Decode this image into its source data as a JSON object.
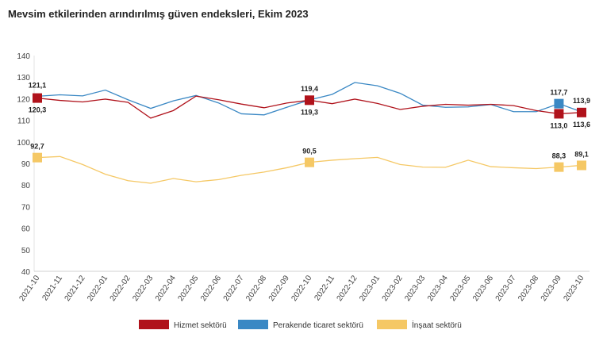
{
  "chart_data": {
    "type": "line",
    "title": "Mevsim etkilerinden arındırılmış güven endeksleri, Ekim 2023",
    "xlabel": "",
    "ylabel": "",
    "ylim": [
      40,
      140
    ],
    "yticks": [
      40,
      50,
      60,
      70,
      80,
      90,
      100,
      110,
      120,
      130,
      140
    ],
    "grid": false,
    "legend_position": "bottom",
    "categories": [
      "2021-10",
      "2021-11",
      "2021-12",
      "2022-01",
      "2022-02",
      "2022-03",
      "2022-04",
      "2022-05",
      "2022-06",
      "2022-07",
      "2022-08",
      "2022-09",
      "2022-10",
      "2022-11",
      "2022-12",
      "2023-01",
      "2023-02",
      "2023-03",
      "2023-04",
      "2023-05",
      "2023-06",
      "2023-07",
      "2023-08",
      "2023-09",
      "2023-10"
    ],
    "series": [
      {
        "name": "Hizmet sektörü",
        "color": "#b0121b",
        "values": [
          120.3,
          119.2,
          118.5,
          119.8,
          118.3,
          111.0,
          114.5,
          121.2,
          119.5,
          117.5,
          115.8,
          118.0,
          119.3,
          117.7,
          119.8,
          117.8,
          115.0,
          116.5,
          117.4,
          117.0,
          117.4,
          116.8,
          114.5,
          113.0,
          113.6
        ],
        "labels": [
          {
            "i": 0,
            "text": "120,3",
            "pos": "below"
          },
          {
            "i": 12,
            "text": "119,3",
            "pos": "below"
          },
          {
            "i": 23,
            "text": "113,0",
            "pos": "below"
          },
          {
            "i": 24,
            "text": "113,6",
            "pos": "below"
          }
        ],
        "markers": [
          0,
          12,
          23,
          24
        ]
      },
      {
        "name": "Perakende ticaret sektörü",
        "color": "#3a88c4",
        "values": [
          121.1,
          121.8,
          121.3,
          124.0,
          119.5,
          115.5,
          119.0,
          121.5,
          118.0,
          113.0,
          112.5,
          116.0,
          119.4,
          122.0,
          127.5,
          126.0,
          122.5,
          117.0,
          116.0,
          116.2,
          117.3,
          114.0,
          114.0,
          117.7,
          113.9
        ],
        "labels": [
          {
            "i": 0,
            "text": "121,1",
            "pos": "above"
          },
          {
            "i": 12,
            "text": "119,4",
            "pos": "above"
          },
          {
            "i": 23,
            "text": "117,7",
            "pos": "above"
          },
          {
            "i": 24,
            "text": "113,9",
            "pos": "above"
          }
        ],
        "markers": [
          23
        ]
      },
      {
        "name": "İnşaat sektörü",
        "color": "#f5c865",
        "values": [
          92.7,
          93.2,
          89.5,
          85.0,
          82.0,
          80.8,
          83.0,
          81.5,
          82.5,
          84.5,
          86.0,
          88.0,
          90.5,
          91.5,
          92.2,
          92.8,
          89.5,
          88.3,
          88.2,
          91.5,
          88.5,
          88.0,
          87.6,
          88.3,
          89.1
        ],
        "labels": [
          {
            "i": 0,
            "text": "92,7",
            "pos": "above"
          },
          {
            "i": 12,
            "text": "90,5",
            "pos": "above"
          },
          {
            "i": 23,
            "text": "88,3",
            "pos": "above"
          },
          {
            "i": 24,
            "text": "89,1",
            "pos": "above"
          }
        ],
        "markers": [
          0,
          12,
          23,
          24
        ]
      }
    ]
  }
}
